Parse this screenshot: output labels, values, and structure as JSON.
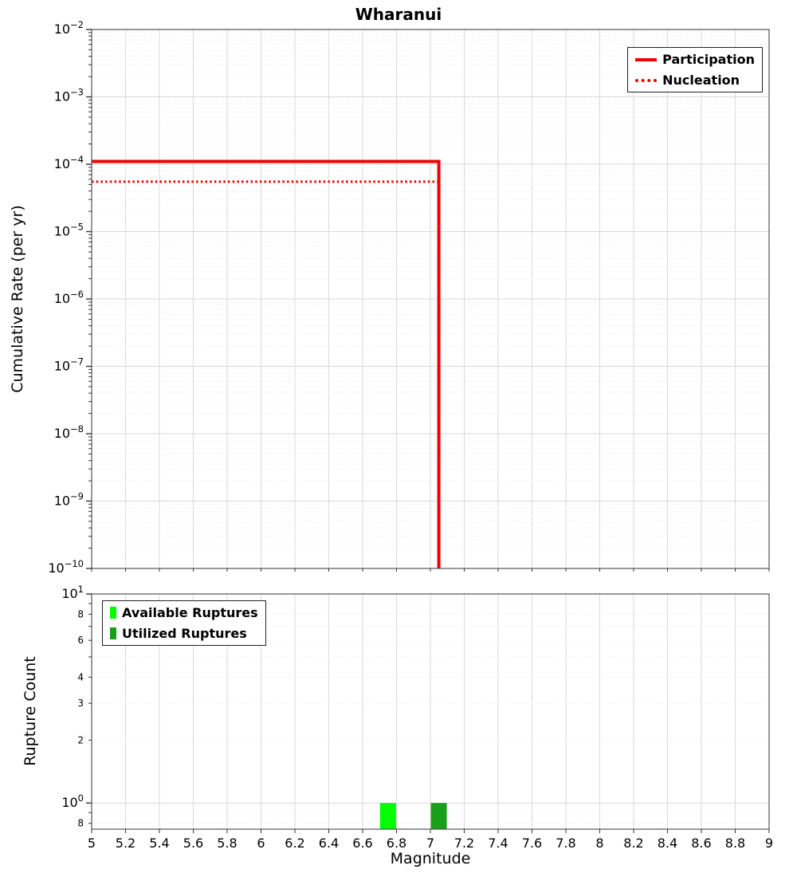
{
  "title": "Wharanui",
  "chart_data": [
    {
      "type": "line",
      "panel": "top",
      "title": "Wharanui",
      "ylabel": "Cumulative Rate (per yr)",
      "xlim": [
        5,
        9
      ],
      "ylim": [
        1e-10,
        0.01
      ],
      "yscale": "log",
      "grid": true,
      "legend_position": "upper right",
      "y_tick_exponents": [
        -2,
        -3,
        -4,
        -5,
        -6,
        -7,
        -8,
        -9,
        -10
      ],
      "series": [
        {
          "name": "Participation",
          "style": "solid",
          "color": "#ee0000",
          "points": [
            [
              5,
              0.00011
            ],
            [
              7.05,
              0.00011
            ],
            [
              7.05,
              1e-10
            ]
          ]
        },
        {
          "name": "Nucleation",
          "style": "dotted",
          "color": "#ee0000",
          "points": [
            [
              5,
              5.5e-05
            ],
            [
              7.05,
              5.5e-05
            ],
            [
              7.05,
              1e-10
            ]
          ]
        }
      ]
    },
    {
      "type": "bar",
      "panel": "bottom",
      "ylabel": "Rupture Count",
      "xlabel": "Magnitude",
      "xlim": [
        5,
        9
      ],
      "ylim": [
        0.75,
        10
      ],
      "yscale": "log",
      "grid": true,
      "legend_position": "upper left",
      "x_ticks": [
        5,
        5.2,
        5.4,
        5.6,
        5.8,
        6,
        6.2,
        6.4,
        6.6,
        6.8,
        7,
        7.2,
        7.4,
        7.6,
        7.8,
        8,
        8.2,
        8.4,
        8.6,
        8.8,
        9
      ],
      "y_major_ticks": [
        {
          "value": 10,
          "exp": 1
        },
        {
          "value": 1,
          "exp": 0
        }
      ],
      "y_minor_labels": [
        {
          "value": 8,
          "label": "8"
        },
        {
          "value": 6,
          "label": "6"
        },
        {
          "value": 4,
          "label": "4"
        },
        {
          "value": 3,
          "label": "3"
        },
        {
          "value": 2,
          "label": "2"
        },
        {
          "value": 0.8,
          "label": "8"
        }
      ],
      "series": [
        {
          "name": "Available Ruptures",
          "color": "#00ff00",
          "bars": [
            {
              "x": 6.75,
              "count": 1
            }
          ]
        },
        {
          "name": "Utilized Ruptures",
          "color": "#18a018",
          "bars": [
            {
              "x": 7.05,
              "count": 1
            }
          ]
        }
      ]
    }
  ]
}
